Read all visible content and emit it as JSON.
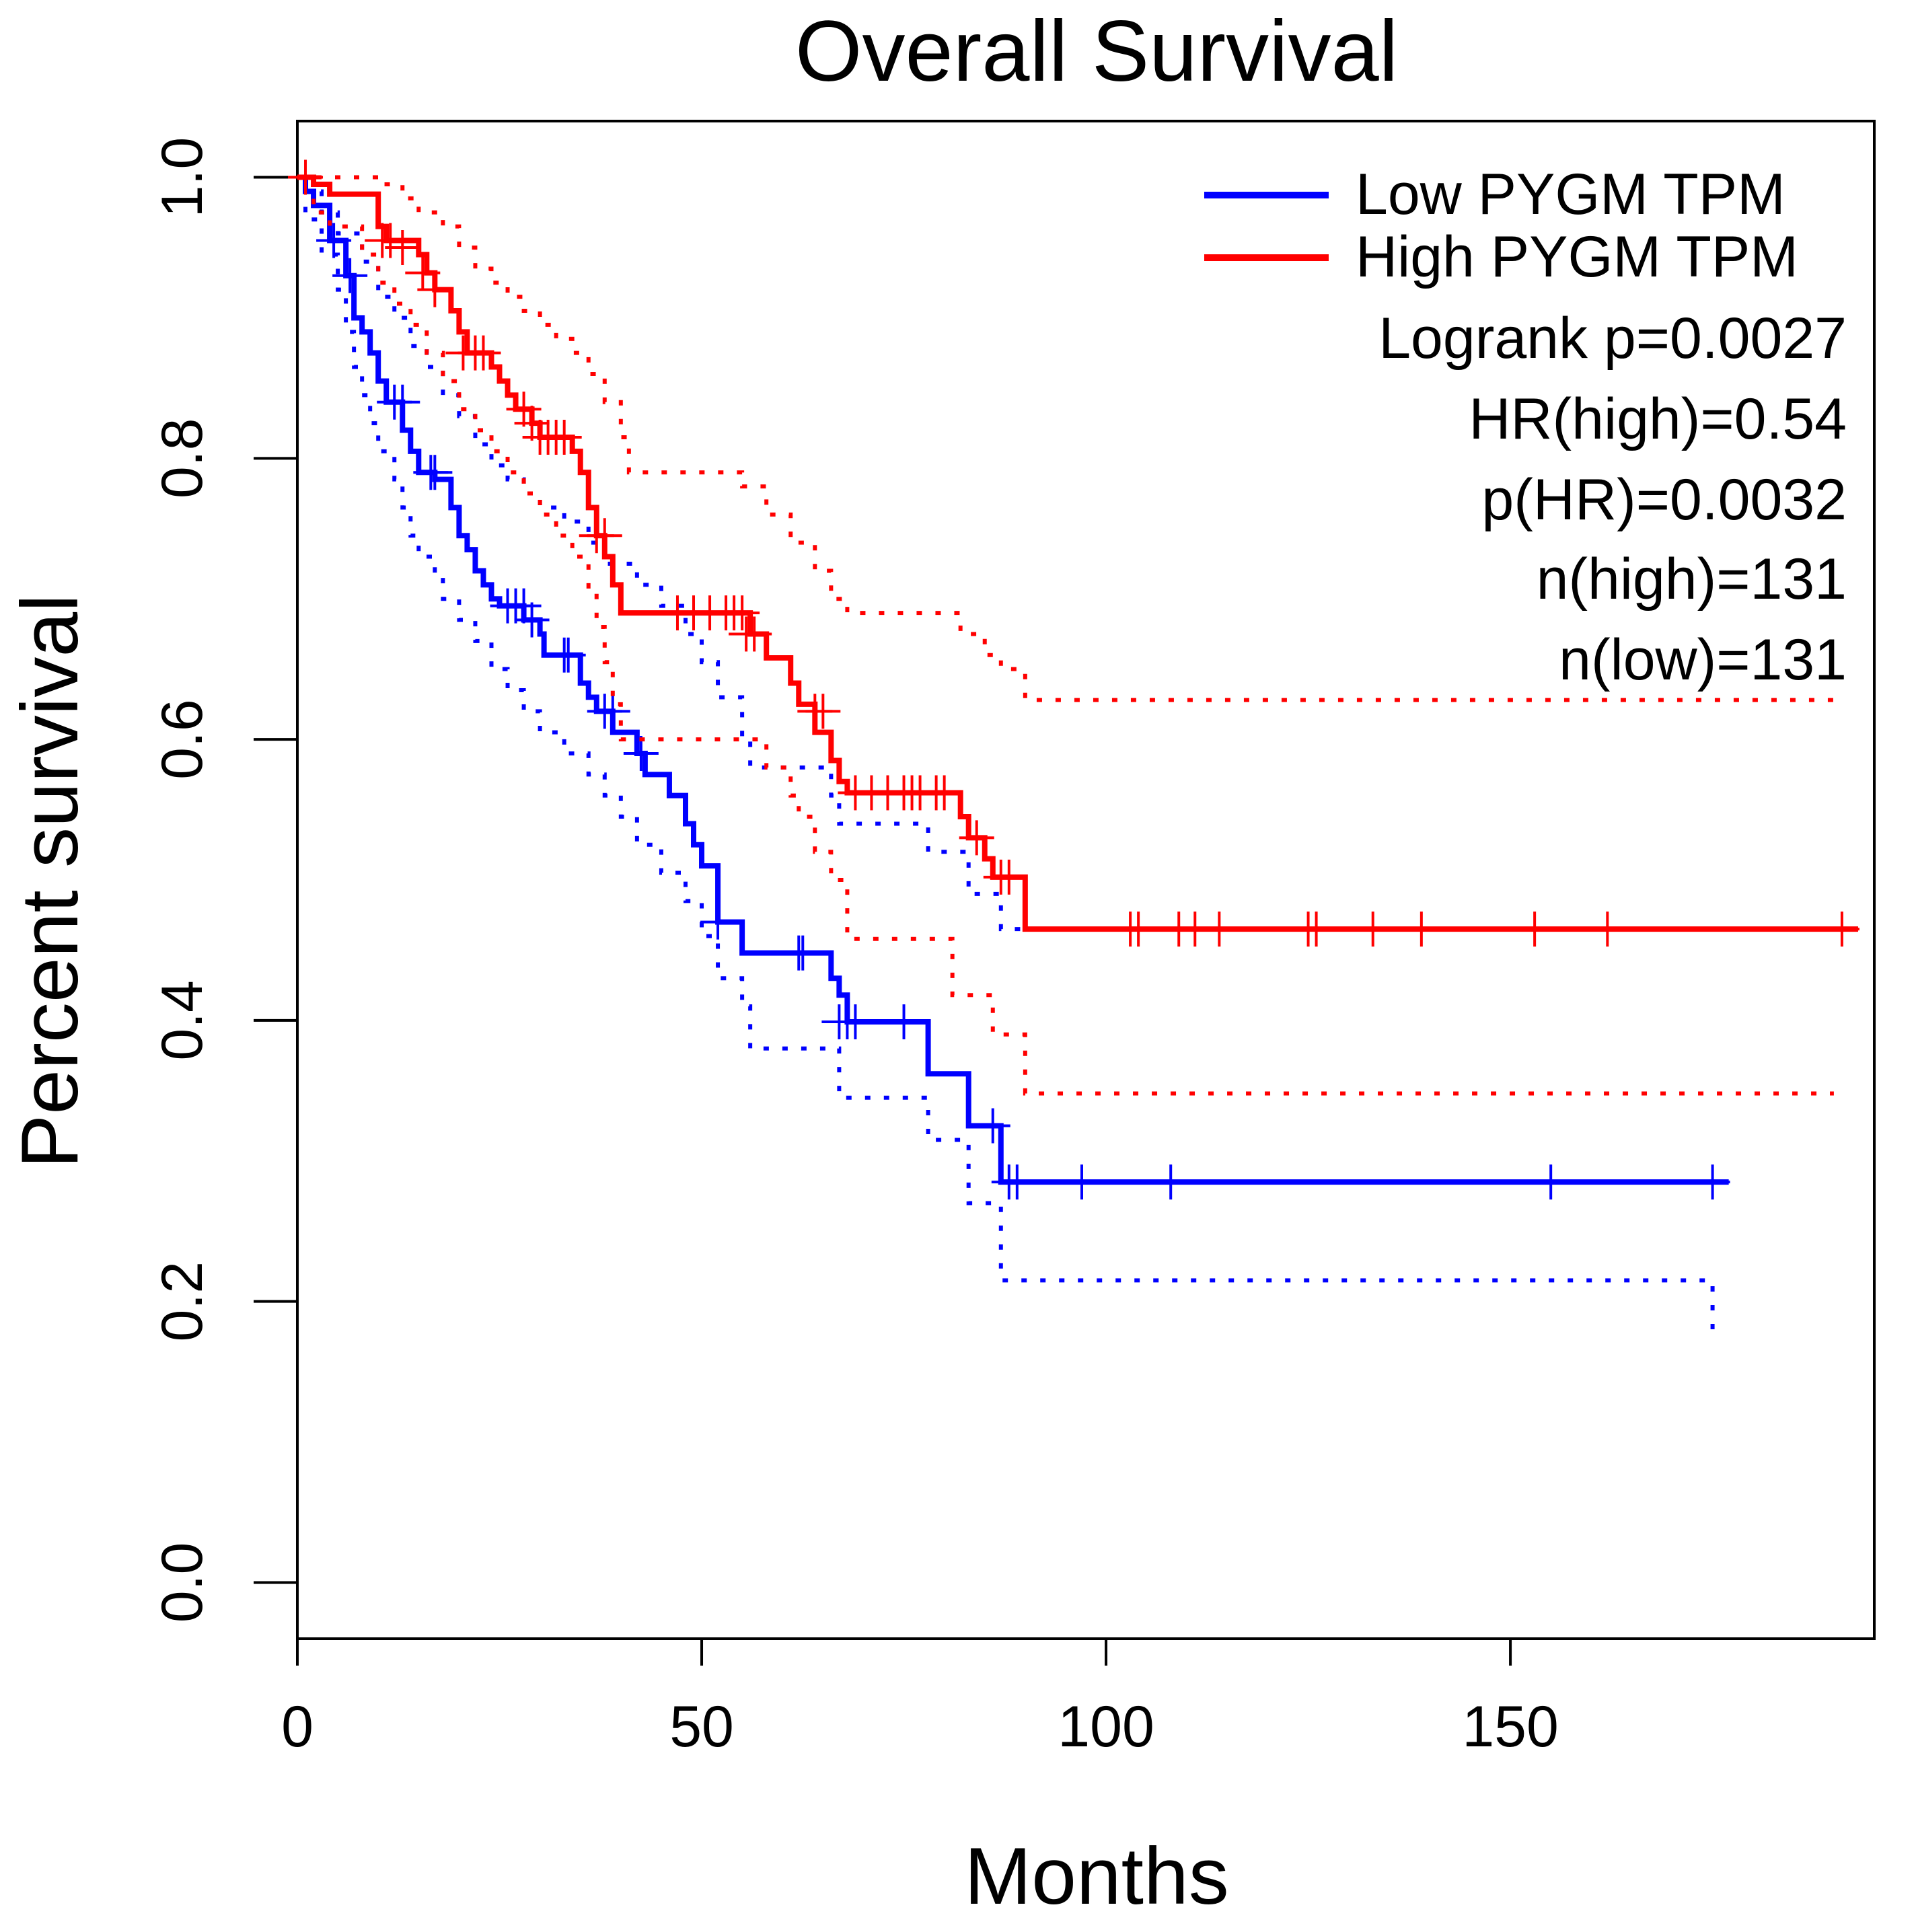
{
  "chart_data": {
    "type": "line",
    "title": "Overall Survival",
    "xlabel": "Months",
    "ylabel": "Percent survival",
    "xlim": [
      0,
      195
    ],
    "ylim": [
      -0.04,
      1.04
    ],
    "x_ticks": [
      0,
      50,
      100,
      150
    ],
    "y_ticks": [
      0.0,
      0.2,
      0.4,
      0.6,
      0.8,
      1.0
    ],
    "x_tick_labels": [
      "0",
      "50",
      "100",
      "150"
    ],
    "y_tick_labels": [
      "0.0",
      "0.2",
      "0.4",
      "0.6",
      "0.8",
      "1.0"
    ],
    "legend_position": "top-right",
    "legend": [
      {
        "label": "Low PYGM TPM",
        "color": "#0000ff"
      },
      {
        "label": "High PYGM TPM",
        "color": "#ff0000"
      }
    ],
    "stats": [
      "Logrank p=0.0027",
      "HR(high)=0.54",
      "p(HR)=0.0032",
      "n(high)=131",
      "n(low)=131"
    ],
    "series": [
      {
        "name": "Low PYGM TPM",
        "color": "#0000ff",
        "steps": [
          [
            0,
            1.0
          ],
          [
            1,
            0.99
          ],
          [
            2,
            0.98
          ],
          [
            4,
            0.955
          ],
          [
            6,
            0.93
          ],
          [
            7,
            0.9
          ],
          [
            8,
            0.89
          ],
          [
            9,
            0.875
          ],
          [
            10,
            0.855
          ],
          [
            11,
            0.84
          ],
          [
            13,
            0.82
          ],
          [
            14,
            0.805
          ],
          [
            15,
            0.79
          ],
          [
            17,
            0.785
          ],
          [
            19,
            0.765
          ],
          [
            20,
            0.745
          ],
          [
            21,
            0.735
          ],
          [
            22,
            0.72
          ],
          [
            23,
            0.71
          ],
          [
            24,
            0.7
          ],
          [
            25,
            0.695
          ],
          [
            28,
            0.685
          ],
          [
            30,
            0.675
          ],
          [
            30.5,
            0.66
          ],
          [
            35,
            0.64
          ],
          [
            36,
            0.63
          ],
          [
            37,
            0.62
          ],
          [
            39,
            0.605
          ],
          [
            42,
            0.59
          ],
          [
            43,
            0.575
          ],
          [
            46,
            0.56
          ],
          [
            48,
            0.54
          ],
          [
            49,
            0.525
          ],
          [
            50,
            0.51
          ],
          [
            52,
            0.47
          ],
          [
            55,
            0.448
          ],
          [
            66,
            0.43
          ],
          [
            67,
            0.418
          ],
          [
            68,
            0.399
          ],
          [
            78,
            0.362
          ],
          [
            83,
            0.325
          ],
          [
            87,
            0.285
          ],
          [
            177,
            0.285
          ]
        ],
        "ci_upper": [
          [
            0,
            1.0
          ],
          [
            1,
            0.99
          ],
          [
            3,
            0.975
          ],
          [
            5,
            0.96
          ],
          [
            8,
            0.94
          ],
          [
            10,
            0.915
          ],
          [
            12,
            0.9
          ],
          [
            14,
            0.88
          ],
          [
            16,
            0.865
          ],
          [
            18,
            0.845
          ],
          [
            20,
            0.83
          ],
          [
            22,
            0.81
          ],
          [
            24,
            0.795
          ],
          [
            26,
            0.785
          ],
          [
            28,
            0.775
          ],
          [
            30,
            0.765
          ],
          [
            33,
            0.755
          ],
          [
            36,
            0.74
          ],
          [
            38,
            0.725
          ],
          [
            42,
            0.71
          ],
          [
            45,
            0.695
          ],
          [
            48,
            0.675
          ],
          [
            50,
            0.655
          ],
          [
            52,
            0.63
          ],
          [
            55,
            0.6
          ],
          [
            56,
            0.58
          ],
          [
            66,
            0.56
          ],
          [
            67,
            0.54
          ],
          [
            78,
            0.52
          ],
          [
            83,
            0.49
          ],
          [
            87,
            0.465
          ],
          [
            175,
            0.465
          ]
        ],
        "ci_lower": [
          [
            0,
            1.0
          ],
          [
            1,
            0.97
          ],
          [
            3,
            0.945
          ],
          [
            5,
            0.92
          ],
          [
            6,
            0.89
          ],
          [
            7,
            0.865
          ],
          [
            8,
            0.845
          ],
          [
            9,
            0.825
          ],
          [
            10,
            0.805
          ],
          [
            12,
            0.785
          ],
          [
            13,
            0.765
          ],
          [
            14,
            0.745
          ],
          [
            15,
            0.73
          ],
          [
            17,
            0.715
          ],
          [
            18,
            0.7
          ],
          [
            20,
            0.685
          ],
          [
            22,
            0.67
          ],
          [
            24,
            0.65
          ],
          [
            26,
            0.635
          ],
          [
            28,
            0.62
          ],
          [
            30,
            0.605
          ],
          [
            33,
            0.59
          ],
          [
            36,
            0.575
          ],
          [
            38,
            0.56
          ],
          [
            40,
            0.545
          ],
          [
            42,
            0.525
          ],
          [
            45,
            0.505
          ],
          [
            48,
            0.485
          ],
          [
            50,
            0.46
          ],
          [
            52,
            0.43
          ],
          [
            55,
            0.41
          ],
          [
            56,
            0.38
          ],
          [
            67,
            0.345
          ],
          [
            78,
            0.315
          ],
          [
            83,
            0.27
          ],
          [
            87,
            0.215
          ],
          [
            175,
            0.175
          ]
        ],
        "censors": [
          [
            4.5,
            0.955
          ],
          [
            6.5,
            0.93
          ],
          [
            12,
            0.84
          ],
          [
            13,
            0.84
          ],
          [
            16.5,
            0.79
          ],
          [
            17,
            0.79
          ],
          [
            26,
            0.695
          ],
          [
            27,
            0.695
          ],
          [
            28,
            0.695
          ],
          [
            29,
            0.685
          ],
          [
            33,
            0.66
          ],
          [
            33.5,
            0.66
          ],
          [
            38,
            0.62
          ],
          [
            39,
            0.62
          ],
          [
            42.5,
            0.59
          ],
          [
            52,
            0.47
          ],
          [
            62,
            0.448
          ],
          [
            62.5,
            0.448
          ],
          [
            67,
            0.399
          ],
          [
            68,
            0.399
          ],
          [
            69,
            0.399
          ],
          [
            75,
            0.399
          ],
          [
            86,
            0.325
          ],
          [
            88,
            0.285
          ],
          [
            89,
            0.285
          ],
          [
            97,
            0.285
          ],
          [
            108,
            0.285
          ],
          [
            155,
            0.285
          ],
          [
            175,
            0.285
          ]
        ]
      },
      {
        "name": "High PYGM TPM",
        "color": "#ff0000",
        "steps": [
          [
            0,
            1.0
          ],
          [
            2,
            0.995
          ],
          [
            4,
            0.988
          ],
          [
            10,
            0.965
          ],
          [
            11,
            0.955
          ],
          [
            15,
            0.945
          ],
          [
            16,
            0.932
          ],
          [
            17,
            0.92
          ],
          [
            19,
            0.905
          ],
          [
            20,
            0.89
          ],
          [
            21,
            0.875
          ],
          [
            24,
            0.865
          ],
          [
            25,
            0.855
          ],
          [
            26,
            0.845
          ],
          [
            27,
            0.835
          ],
          [
            29,
            0.825
          ],
          [
            30,
            0.815
          ],
          [
            34,
            0.805
          ],
          [
            35,
            0.79
          ],
          [
            36,
            0.765
          ],
          [
            37,
            0.745
          ],
          [
            38,
            0.73
          ],
          [
            39,
            0.71
          ],
          [
            40,
            0.69
          ],
          [
            56,
            0.675
          ],
          [
            58,
            0.658
          ],
          [
            61,
            0.64
          ],
          [
            62,
            0.625
          ],
          [
            64,
            0.605
          ],
          [
            66,
            0.585
          ],
          [
            67,
            0.57
          ],
          [
            68,
            0.562
          ],
          [
            82,
            0.545
          ],
          [
            83,
            0.53
          ],
          [
            85,
            0.515
          ],
          [
            86,
            0.502
          ],
          [
            90,
            0.465
          ],
          [
            193,
            0.465
          ]
        ],
        "ci_upper": [
          [
            0,
            1.0
          ],
          [
            5,
            1.0
          ],
          [
            10,
            0.995
          ],
          [
            13,
            0.985
          ],
          [
            15,
            0.975
          ],
          [
            18,
            0.965
          ],
          [
            20,
            0.95
          ],
          [
            22,
            0.935
          ],
          [
            24,
            0.925
          ],
          [
            26,
            0.915
          ],
          [
            28,
            0.905
          ],
          [
            30,
            0.895
          ],
          [
            32,
            0.885
          ],
          [
            34,
            0.875
          ],
          [
            36,
            0.86
          ],
          [
            38,
            0.84
          ],
          [
            40,
            0.815
          ],
          [
            41,
            0.79
          ],
          [
            55,
            0.78
          ],
          [
            58,
            0.76
          ],
          [
            61,
            0.74
          ],
          [
            64,
            0.72
          ],
          [
            66,
            0.7
          ],
          [
            68,
            0.69
          ],
          [
            82,
            0.675
          ],
          [
            85,
            0.66
          ],
          [
            87,
            0.65
          ],
          [
            90,
            0.628
          ],
          [
            190,
            0.628
          ]
        ],
        "ci_lower": [
          [
            0,
            1.0
          ],
          [
            2,
            0.975
          ],
          [
            4,
            0.965
          ],
          [
            8,
            0.945
          ],
          [
            10,
            0.925
          ],
          [
            12,
            0.91
          ],
          [
            14,
            0.895
          ],
          [
            16,
            0.875
          ],
          [
            18,
            0.855
          ],
          [
            20,
            0.835
          ],
          [
            22,
            0.82
          ],
          [
            24,
            0.805
          ],
          [
            26,
            0.79
          ],
          [
            28,
            0.775
          ],
          [
            30,
            0.76
          ],
          [
            32,
            0.745
          ],
          [
            34,
            0.73
          ],
          [
            36,
            0.705
          ],
          [
            37,
            0.68
          ],
          [
            38,
            0.655
          ],
          [
            39,
            0.625
          ],
          [
            40,
            0.6
          ],
          [
            55,
            0.6
          ],
          [
            58,
            0.58
          ],
          [
            61,
            0.56
          ],
          [
            62,
            0.545
          ],
          [
            64,
            0.52
          ],
          [
            66,
            0.5
          ],
          [
            68,
            0.458
          ],
          [
            81,
            0.418
          ],
          [
            86,
            0.39
          ],
          [
            90,
            0.348
          ],
          [
            190,
            0.348
          ]
        ],
        "censors": [
          [
            1,
            1.0
          ],
          [
            10.5,
            0.955
          ],
          [
            11.5,
            0.955
          ],
          [
            13,
            0.95
          ],
          [
            15.5,
            0.932
          ],
          [
            17,
            0.92
          ],
          [
            20.5,
            0.875
          ],
          [
            22,
            0.875
          ],
          [
            23,
            0.875
          ],
          [
            28,
            0.835
          ],
          [
            29,
            0.825
          ],
          [
            30,
            0.815
          ],
          [
            31,
            0.815
          ],
          [
            32,
            0.815
          ],
          [
            33,
            0.815
          ],
          [
            37,
            0.745
          ],
          [
            38,
            0.745
          ],
          [
            47,
            0.69
          ],
          [
            49,
            0.69
          ],
          [
            51,
            0.69
          ],
          [
            53,
            0.69
          ],
          [
            54,
            0.69
          ],
          [
            55,
            0.69
          ],
          [
            55.5,
            0.675
          ],
          [
            56.5,
            0.675
          ],
          [
            64,
            0.62
          ],
          [
            65,
            0.62
          ],
          [
            69,
            0.562
          ],
          [
            71,
            0.562
          ],
          [
            73,
            0.562
          ],
          [
            75,
            0.562
          ],
          [
            76,
            0.562
          ],
          [
            77,
            0.562
          ],
          [
            79,
            0.562
          ],
          [
            80,
            0.562
          ],
          [
            84,
            0.53
          ],
          [
            87,
            0.502
          ],
          [
            88,
            0.502
          ],
          [
            103,
            0.465
          ],
          [
            104,
            0.465
          ],
          [
            109,
            0.465
          ],
          [
            111,
            0.465
          ],
          [
            114,
            0.465
          ],
          [
            125,
            0.465
          ],
          [
            126,
            0.465
          ],
          [
            133,
            0.465
          ],
          [
            139,
            0.465
          ],
          [
            153,
            0.465
          ],
          [
            162,
            0.465
          ],
          [
            191,
            0.465
          ]
        ]
      }
    ]
  }
}
